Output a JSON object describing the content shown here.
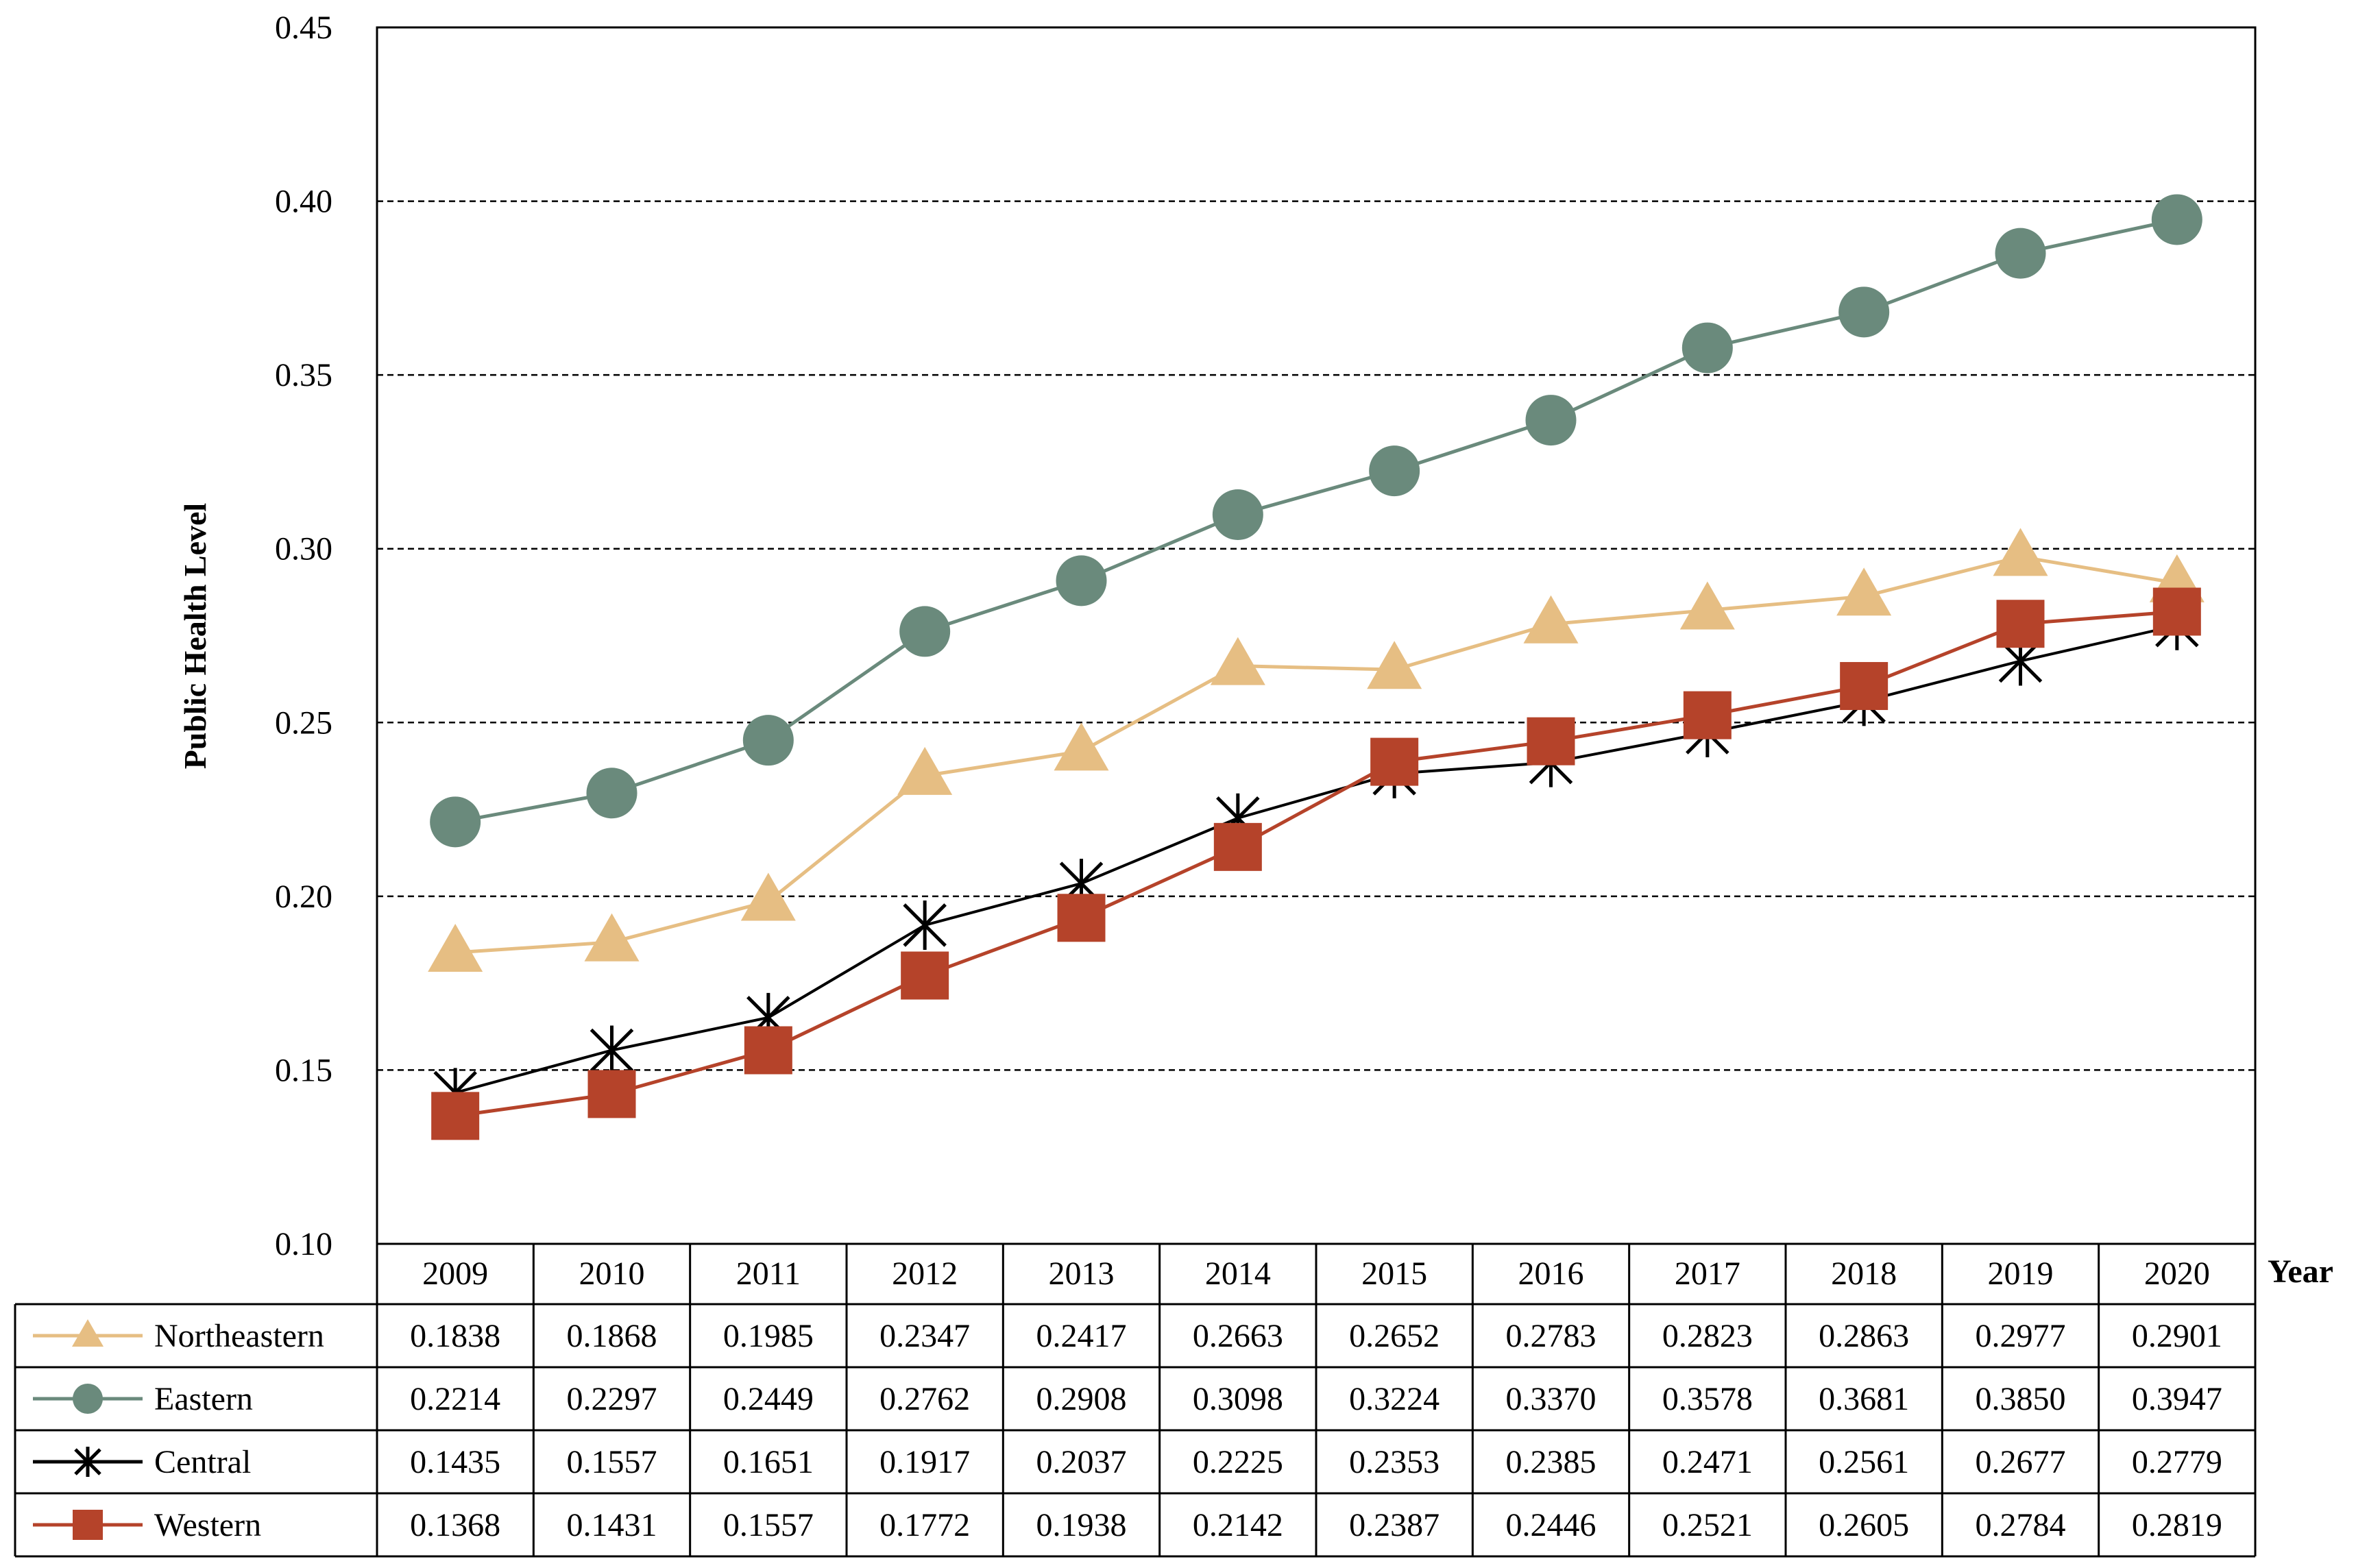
{
  "chart_data": {
    "type": "line",
    "title": "",
    "xlabel": "Year",
    "ylabel": "Public Health Level",
    "ylim": [
      0.1,
      0.45
    ],
    "yticks": [
      "0.10",
      "0.15",
      "0.20",
      "0.25",
      "0.30",
      "0.35",
      "0.40",
      "0.45"
    ],
    "ytick_values": [
      0.1,
      0.15,
      0.2,
      0.25,
      0.3,
      0.35,
      0.4,
      0.45
    ],
    "grid": true,
    "legend": "data table below plot",
    "categories": [
      "2009",
      "2010",
      "2011",
      "2012",
      "2013",
      "2014",
      "2015",
      "2016",
      "2017",
      "2018",
      "2019",
      "2020"
    ],
    "series": [
      {
        "name": "Northeastern",
        "marker": "triangle",
        "color": "#E6BE83",
        "values": [
          0.1838,
          0.1868,
          0.1985,
          0.2347,
          0.2417,
          0.2663,
          0.2652,
          0.2783,
          0.2823,
          0.2863,
          0.2977,
          0.2901
        ],
        "labels": [
          "0.1838",
          "0.1868",
          "0.1985",
          "0.2347",
          "0.2417",
          "0.2663",
          "0.2652",
          "0.2783",
          "0.2823",
          "0.2863",
          "0.2977",
          "0.2901"
        ]
      },
      {
        "name": "Eastern",
        "marker": "circle",
        "color": "#6A8A7C",
        "values": [
          0.2214,
          0.2297,
          0.2449,
          0.2762,
          0.2908,
          0.3098,
          0.3224,
          0.337,
          0.3578,
          0.3681,
          0.385,
          0.3947
        ],
        "labels": [
          "0.2214",
          "0.2297",
          "0.2449",
          "0.2762",
          "0.2908",
          "0.3098",
          "0.3224",
          "0.3370",
          "0.3578",
          "0.3681",
          "0.3850",
          "0.3947"
        ]
      },
      {
        "name": "Central",
        "marker": "asterisk",
        "color": "#000000",
        "values": [
          0.1435,
          0.1557,
          0.1651,
          0.1917,
          0.2037,
          0.2225,
          0.2353,
          0.2385,
          0.2471,
          0.2561,
          0.2677,
          0.2779
        ],
        "labels": [
          "0.1435",
          "0.1557",
          "0.1651",
          "0.1917",
          "0.2037",
          "0.2225",
          "0.2353",
          "0.2385",
          "0.2471",
          "0.2561",
          "0.2677",
          "0.2779"
        ]
      },
      {
        "name": "Western",
        "marker": "square",
        "color": "#B5432A",
        "values": [
          0.1368,
          0.1431,
          0.1557,
          0.1772,
          0.1938,
          0.2142,
          0.2387,
          0.2446,
          0.2521,
          0.2605,
          0.2784,
          0.2819
        ],
        "labels": [
          "0.1368",
          "0.1431",
          "0.1557",
          "0.1772",
          "0.1938",
          "0.2142",
          "0.2387",
          "0.2446",
          "0.2521",
          "0.2605",
          "0.2784",
          "0.2819"
        ]
      }
    ]
  }
}
